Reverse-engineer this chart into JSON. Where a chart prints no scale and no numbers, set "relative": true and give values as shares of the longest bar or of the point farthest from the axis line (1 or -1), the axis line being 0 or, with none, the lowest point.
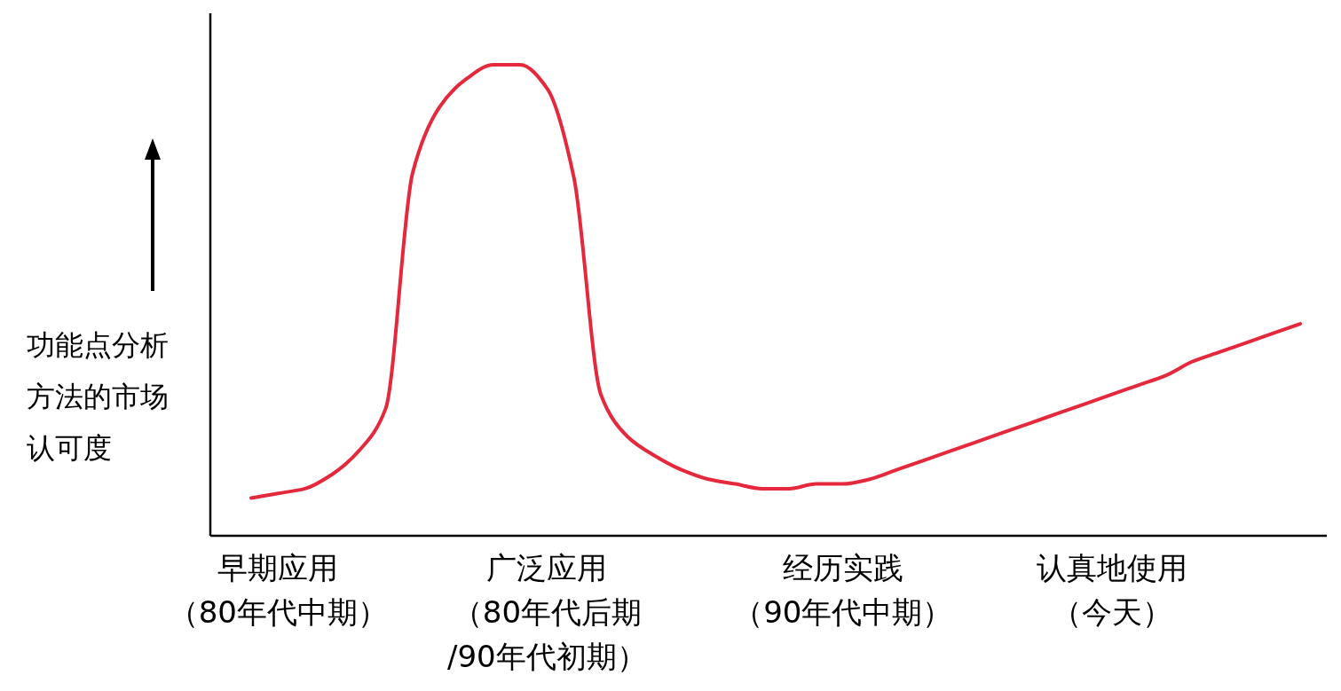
{
  "chart_data": {
    "type": "line",
    "relative": true,
    "ylabel": "功能点分析方法的市场认可度",
    "categories": [
      null,
      "早期应用（80年代中期）",
      null,
      null,
      null,
      null,
      null,
      null,
      null,
      null,
      null,
      "广泛应用（80年代后期/90年代初期）",
      null,
      null,
      null,
      null,
      null,
      null,
      null,
      null,
      null,
      null,
      "经历实践（90年代中期）",
      null,
      null,
      null,
      null,
      null,
      null,
      null,
      null,
      null,
      "认真地使用（今天）",
      null,
      null,
      null,
      null,
      null,
      null,
      null
    ],
    "series": [
      {
        "color": "#e5283c",
        "values": [
          0.08,
          0.09,
          0.1,
          0.13,
          0.18,
          0.27,
          0.77,
          0.91,
          0.97,
          1.0,
          1.0,
          0.95,
          0.76,
          0.3,
          0.21,
          0.17,
          0.14,
          0.12,
          0.11,
          0.1,
          0.1,
          0.11,
          0.11,
          0.12,
          0.14,
          0.16,
          0.18,
          0.2,
          0.22,
          0.24,
          0.26,
          0.28,
          0.3,
          0.32,
          0.34,
          0.37,
          0.39,
          0.41,
          0.43,
          0.45
        ]
      }
    ]
  }
}
